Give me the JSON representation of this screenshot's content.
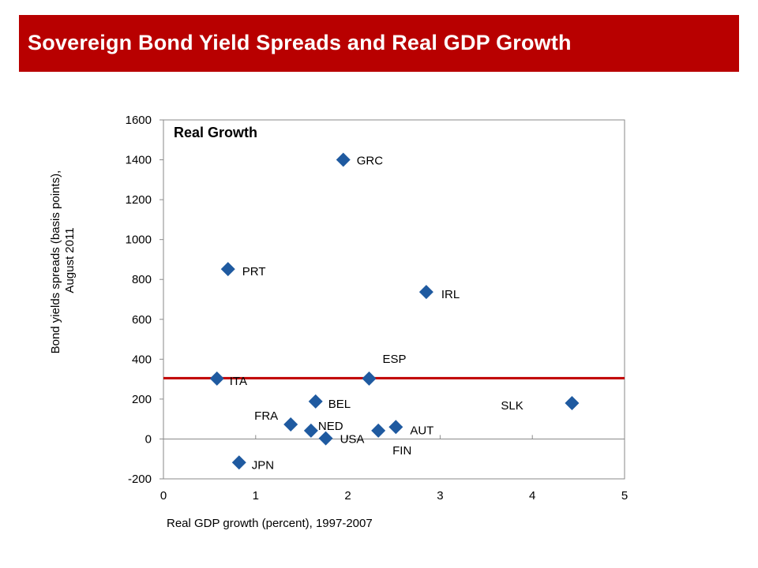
{
  "slide": {
    "title": "Sovereign Bond Yield Spreads and Real GDP Growth"
  },
  "colors": {
    "banner": "#b80000",
    "marker": "#1f5aa0",
    "reference_line": "#c00000"
  },
  "chart_data": {
    "type": "scatter",
    "title": "Real Growth",
    "xlabel": "Real GDP growth (percent), 1997-2007",
    "ylabel": "Bond yields spreads (basis points), August 2011",
    "ylabel_lines": [
      "Bond yields spreads (basis points),",
      "August 2011"
    ],
    "xlim": [
      0,
      5
    ],
    "ylim": [
      -200,
      1600
    ],
    "xticks": [
      0,
      1,
      2,
      3,
      4,
      5
    ],
    "yticks": [
      -200,
      0,
      200,
      400,
      600,
      800,
      1000,
      1200,
      1400,
      1600
    ],
    "grid": false,
    "reference_line_y": 305,
    "points": [
      {
        "label": "GRC",
        "x": 1.95,
        "y": 1400
      },
      {
        "label": "PRT",
        "x": 0.7,
        "y": 852
      },
      {
        "label": "IRL",
        "x": 2.85,
        "y": 737
      },
      {
        "label": "ESP",
        "x": 2.23,
        "y": 303
      },
      {
        "label": "ITA",
        "x": 0.58,
        "y": 303
      },
      {
        "label": "BEL",
        "x": 1.65,
        "y": 188
      },
      {
        "label": "SLK",
        "x": 4.43,
        "y": 180
      },
      {
        "label": "FRA",
        "x": 1.38,
        "y": 73
      },
      {
        "label": "NED",
        "x": 1.6,
        "y": 42
      },
      {
        "label": "USA",
        "x": 1.76,
        "y": 3
      },
      {
        "label": "FIN",
        "x": 2.33,
        "y": 42
      },
      {
        "label": "AUT",
        "x": 2.52,
        "y": 60
      },
      {
        "label": "JPN",
        "x": 0.82,
        "y": -118
      }
    ]
  }
}
